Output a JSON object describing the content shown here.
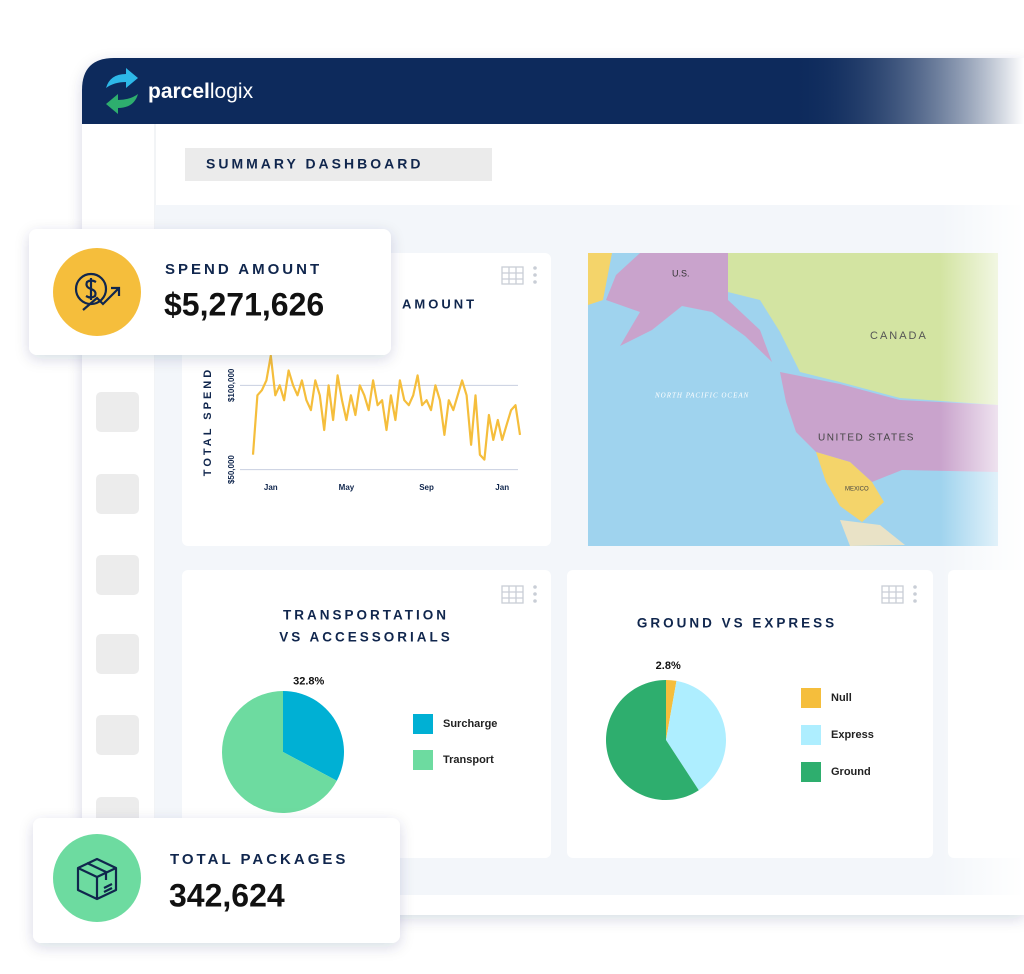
{
  "header": {
    "brand_bold": "parcel",
    "brand_light": "logix"
  },
  "page_title": "SUMMARY DASHBOARD",
  "kpis": [
    {
      "label": "SPEND AMOUNT",
      "value": "$5,271,626"
    },
    {
      "label": "TOTAL PACKAGES",
      "value": "342,624"
    }
  ],
  "map": {
    "labels": [
      "U.S.",
      "CANADA",
      "NORTH PACIFIC OCEAN",
      "UNITED STATES",
      "MEXICO"
    ]
  },
  "chart_data": [
    {
      "type": "line",
      "title": "AMOUNT",
      "y_label": "TOTAL SPEND",
      "categories": [
        null,
        null,
        null,
        null,
        "Jan",
        null,
        null,
        null,
        null,
        null,
        null,
        null,
        null,
        null,
        null,
        null,
        null,
        null,
        null,
        null,
        null,
        "May",
        null,
        null,
        null,
        null,
        null,
        null,
        null,
        null,
        null,
        null,
        null,
        null,
        null,
        null,
        null,
        null,
        null,
        "Sep",
        null,
        null,
        null,
        null,
        null,
        null,
        null,
        null,
        null,
        null,
        null,
        null,
        null,
        null,
        null,
        null,
        "Jan",
        null,
        null,
        null,
        null
      ],
      "values": [
        58800,
        94100,
        97100,
        102900,
        117600,
        94100,
        100000,
        91200,
        108800,
        100000,
        94100,
        102900,
        91200,
        85300,
        102900,
        94100,
        73500,
        100000,
        79400,
        105900,
        91200,
        79400,
        94100,
        82400,
        100000,
        94100,
        85300,
        102900,
        88200,
        91200,
        73500,
        94100,
        79400,
        102900,
        91200,
        88200,
        94100,
        105900,
        88200,
        91200,
        85300,
        100000,
        91200,
        70600,
        91200,
        85300,
        94100,
        102900,
        94100,
        64700,
        94100,
        58800,
        55900,
        82400,
        67600,
        79400,
        67600,
        76500,
        85300,
        88200,
        70600
      ],
      "color": "#f5be3c",
      "ylim": [
        45000,
        118000
      ],
      "yticks": [
        {
          "value": 50000,
          "label": "$50,000"
        },
        {
          "value": 100000,
          "label": "$100,000"
        }
      ],
      "grid": true
    },
    {
      "type": "pie",
      "title": [
        "TRANSPORTATION",
        "VS ACCESSORIALS"
      ],
      "categories": [
        "Surcharge",
        "Transport"
      ],
      "values": [
        32.8,
        67.2
      ],
      "value_labels": [
        "32.8%",
        null
      ],
      "colors": [
        "#00b0d4",
        "#6ddba0"
      ]
    },
    {
      "type": "pie",
      "title": [
        "GROUND VS EXPRESS"
      ],
      "categories": [
        "Null",
        "Express",
        "Ground"
      ],
      "values": [
        2.8,
        38,
        59.2
      ],
      "value_labels": [
        "2.8%",
        null,
        null
      ],
      "colors": [
        "#f5be3c",
        "#aeeeff",
        "#2eae6e"
      ]
    }
  ]
}
